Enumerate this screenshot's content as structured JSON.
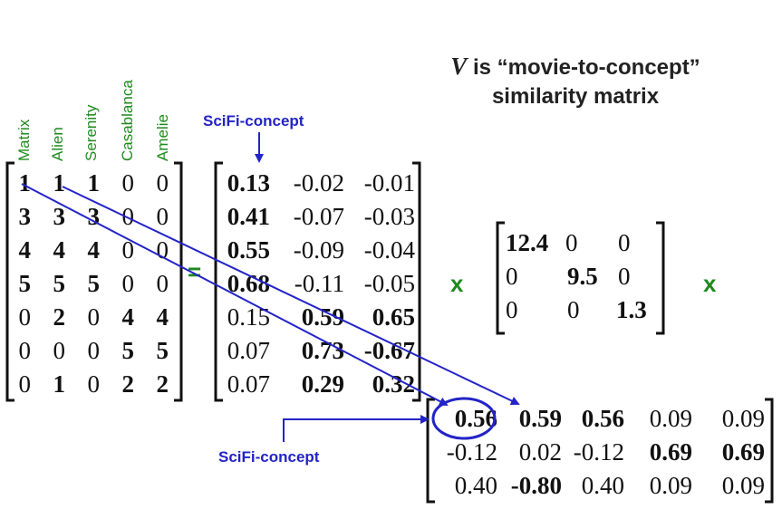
{
  "title": {
    "var": "V",
    "line1_rest": " is “movie-to-concept”",
    "line2": "similarity matrix"
  },
  "movies": [
    "Matrix",
    "Alien",
    "Serenity",
    "Casablanca",
    "Amelie"
  ],
  "concept_labels": {
    "top": "SciFi-concept",
    "bottom": "SciFi-concept"
  },
  "operators": {
    "equals": "=",
    "times1": "x",
    "times2": "x"
  },
  "matrix_A": [
    [
      "1",
      "1",
      "1",
      "0",
      "0"
    ],
    [
      "3",
      "3",
      "3",
      "0",
      "0"
    ],
    [
      "4",
      "4",
      "4",
      "0",
      "0"
    ],
    [
      "5",
      "5",
      "5",
      "0",
      "0"
    ],
    [
      "0",
      "2",
      "0",
      "4",
      "4"
    ],
    [
      "0",
      "0",
      "0",
      "5",
      "5"
    ],
    [
      "0",
      "1",
      "0",
      "2",
      "2"
    ]
  ],
  "matrix_U": [
    [
      "0.13",
      "-0.02",
      "-0.01"
    ],
    [
      "0.41",
      "-0.07",
      "-0.03"
    ],
    [
      "0.55",
      "-0.09",
      "-0.04"
    ],
    [
      "0.68",
      "-0.11",
      "-0.05"
    ],
    [
      "0.15",
      "0.59",
      "0.65"
    ],
    [
      "0.07",
      "0.73",
      "-0.67"
    ],
    [
      "0.07",
      "0.29",
      "0.32"
    ]
  ],
  "matrix_S": [
    [
      "12.4",
      "0",
      "0"
    ],
    [
      "0",
      "9.5",
      "0"
    ],
    [
      "0",
      "0",
      "1.3"
    ]
  ],
  "matrix_V": [
    [
      "0.56",
      "0.59",
      "0.56",
      "0.09",
      "0.09"
    ],
    [
      "-0.12",
      "0.02",
      "-0.12",
      "0.69",
      "0.69"
    ],
    [
      "0.40",
      "-0.80",
      "0.40",
      "0.09",
      "0.09"
    ]
  ],
  "colors": {
    "movie_label": "#1e8a1e",
    "operator": "#1e8a1e",
    "concept_label": "#2323c8",
    "arrow": "#2323c8",
    "text": "#111111"
  }
}
